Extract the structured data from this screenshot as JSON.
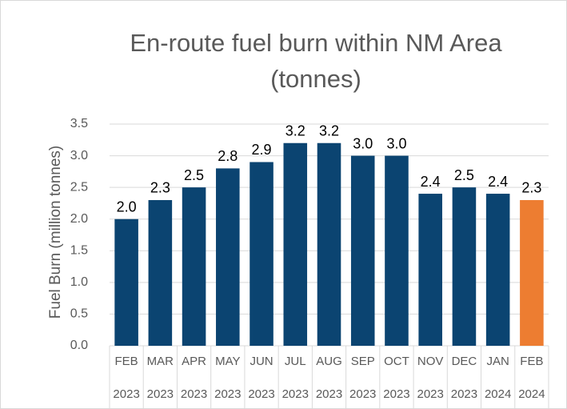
{
  "chart_data": {
    "type": "bar",
    "title": [
      "En-route fuel burn within NM Area",
      "(tonnes)"
    ],
    "y_label": "Fuel Burn (million tonnes)",
    "categories": [
      [
        "FEB",
        "2023"
      ],
      [
        "MAR",
        "2023"
      ],
      [
        "APR",
        "2023"
      ],
      [
        "MAY",
        "2023"
      ],
      [
        "JUN",
        "2023"
      ],
      [
        "JUL",
        "2023"
      ],
      [
        "AUG",
        "2023"
      ],
      [
        "SEP",
        "2023"
      ],
      [
        "OCT",
        "2023"
      ],
      [
        "NOV",
        "2023"
      ],
      [
        "DEC",
        "2023"
      ],
      [
        "JAN",
        "2024"
      ],
      [
        "FEB",
        "2024"
      ]
    ],
    "values": [
      2.0,
      2.3,
      2.5,
      2.8,
      2.9,
      3.2,
      3.2,
      3.0,
      3.0,
      2.4,
      2.5,
      2.4,
      2.3
    ],
    "value_labels": [
      "2.0",
      "2.3",
      "2.5",
      "2.8",
      "2.9",
      "3.2",
      "3.2",
      "3.0",
      "3.0",
      "2.4",
      "2.5",
      "2.4",
      "2.3"
    ],
    "colors": [
      "#0b4471",
      "#0b4471",
      "#0b4471",
      "#0b4471",
      "#0b4471",
      "#0b4471",
      "#0b4471",
      "#0b4471",
      "#0b4471",
      "#0b4471",
      "#0b4471",
      "#0b4471",
      "#ed7d31"
    ],
    "ylim": [
      0,
      3.5
    ],
    "yticks": [
      {
        "value": 0,
        "label": "0.0"
      },
      {
        "value": 0.5,
        "label": "0.5"
      },
      {
        "value": 1,
        "label": "1.0"
      },
      {
        "value": 1.5,
        "label": "1.5"
      },
      {
        "value": 2,
        "label": "2.0"
      },
      {
        "value": 2.5,
        "label": "2.5"
      },
      {
        "value": 3,
        "label": "3.0"
      },
      {
        "value": 3.5,
        "label": "3.5"
      }
    ],
    "grid": true
  }
}
